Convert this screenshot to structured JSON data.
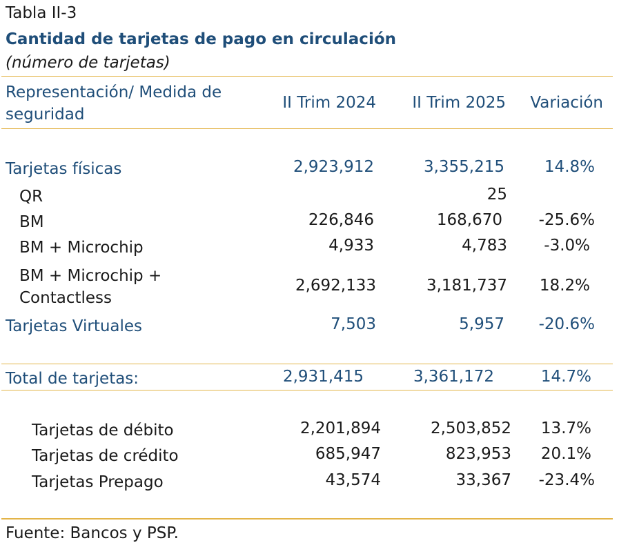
{
  "header": {
    "table_label": "Tabla II-3",
    "title": "Cantidad de tarjetas de pago en circulación",
    "subtitle": "(número de tarjetas)"
  },
  "columns": {
    "label_line1": "Representación/ Medida de",
    "label_line2": "seguridad",
    "col1": "II Trim 2024",
    "col2": "II Trim 2025",
    "col3": "Variación"
  },
  "rows": {
    "fisicas": {
      "label": "Tarjetas físicas",
      "v2024": "2,923,912",
      "v2025": "3,355,215",
      "var": "14.8%"
    },
    "qr": {
      "label": "QR",
      "v2024": "",
      "v2025": "25",
      "var": ""
    },
    "bm": {
      "label": "BM",
      "v2024": "226,846",
      "v2025": "168,670",
      "var": "-25.6%"
    },
    "bm_chip": {
      "label": "BM + Microchip",
      "v2024": "4,933",
      "v2025": "4,783",
      "var": "-3.0%"
    },
    "bm_chip_cl": {
      "label_line1": "BM + Microchip +",
      "label_line2": "Contactless",
      "v2024": "2,692,133",
      "v2025": "3,181,737",
      "var": "18.2%"
    },
    "virtuales": {
      "label": "Tarjetas Virtuales",
      "v2024": "7,503",
      "v2025": "5,957",
      "var": "-20.6%"
    },
    "total": {
      "label": "Total de tarjetas:",
      "v2024": "2,931,415",
      "v2025": "3,361,172",
      "var": "14.7%"
    },
    "debito": {
      "label": "Tarjetas de débito",
      "v2024": "2,201,894",
      "v2025": "2,503,852",
      "var": "13.7%"
    },
    "credito": {
      "label": "Tarjetas de crédito",
      "v2024": "685,947",
      "v2025": "823,953",
      "var": "20.1%"
    },
    "prepago": {
      "label": "Tarjetas Prepago",
      "v2024": "43,574",
      "v2025": "33,367",
      "var": "-23.4%"
    }
  },
  "footer": {
    "source": "Fuente: Bancos y PSP."
  },
  "colors": {
    "accent_blue": "#1f4e79",
    "rule_gold": "#e3b448",
    "text": "#1a1a1a"
  }
}
